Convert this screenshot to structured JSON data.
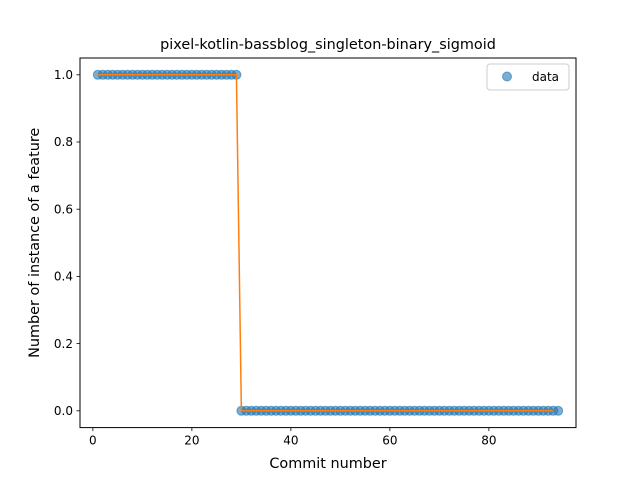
{
  "chart_data": {
    "type": "scatter",
    "title": "pixel-kotlin-bassblog_singleton-binary_sigmoid",
    "xlabel": "Commit number",
    "ylabel": "Number of instance of a feature",
    "xlim": [
      -2.6,
      97.6
    ],
    "ylim": [
      -0.05,
      1.05
    ],
    "xticks": [
      0,
      20,
      40,
      60,
      80
    ],
    "yticks": [
      0.0,
      0.2,
      0.4,
      0.6,
      0.8,
      1.0
    ],
    "xtick_labels": [
      "0",
      "20",
      "40",
      "60",
      "80"
    ],
    "ytick_labels": [
      "0.0",
      "0.2",
      "0.4",
      "0.6",
      "0.8",
      "1.0"
    ],
    "grid": false,
    "legend": {
      "position": "top-right",
      "entries": [
        "data"
      ]
    },
    "series": [
      {
        "name": "data",
        "kind": "scatter",
        "color": "#1f77b4",
        "x_start": 1,
        "x_end": 93,
        "y": [
          1,
          1,
          1,
          1,
          1,
          1,
          1,
          1,
          1,
          1,
          1,
          1,
          1,
          1,
          1,
          1,
          1,
          1,
          1,
          1,
          1,
          1,
          1,
          1,
          1,
          1,
          1,
          1,
          1,
          0,
          0,
          0,
          0,
          0,
          0,
          0,
          0,
          0,
          0,
          0,
          0,
          0,
          0,
          0,
          0,
          0,
          0,
          0,
          0,
          0,
          0,
          0,
          0,
          0,
          0,
          0,
          0,
          0,
          0,
          0,
          0,
          0,
          0,
          0,
          0,
          0,
          0,
          0,
          0,
          0,
          0,
          0,
          0,
          0,
          0,
          0,
          0,
          0,
          0,
          0,
          0,
          0,
          0,
          0,
          0,
          0,
          0,
          0,
          0,
          0,
          0,
          0,
          0,
          0
        ]
      },
      {
        "kind": "line",
        "color": "#ff7f0e",
        "x": [
          1,
          29,
          30,
          93
        ],
        "y": [
          1,
          1,
          0,
          0
        ]
      }
    ]
  }
}
